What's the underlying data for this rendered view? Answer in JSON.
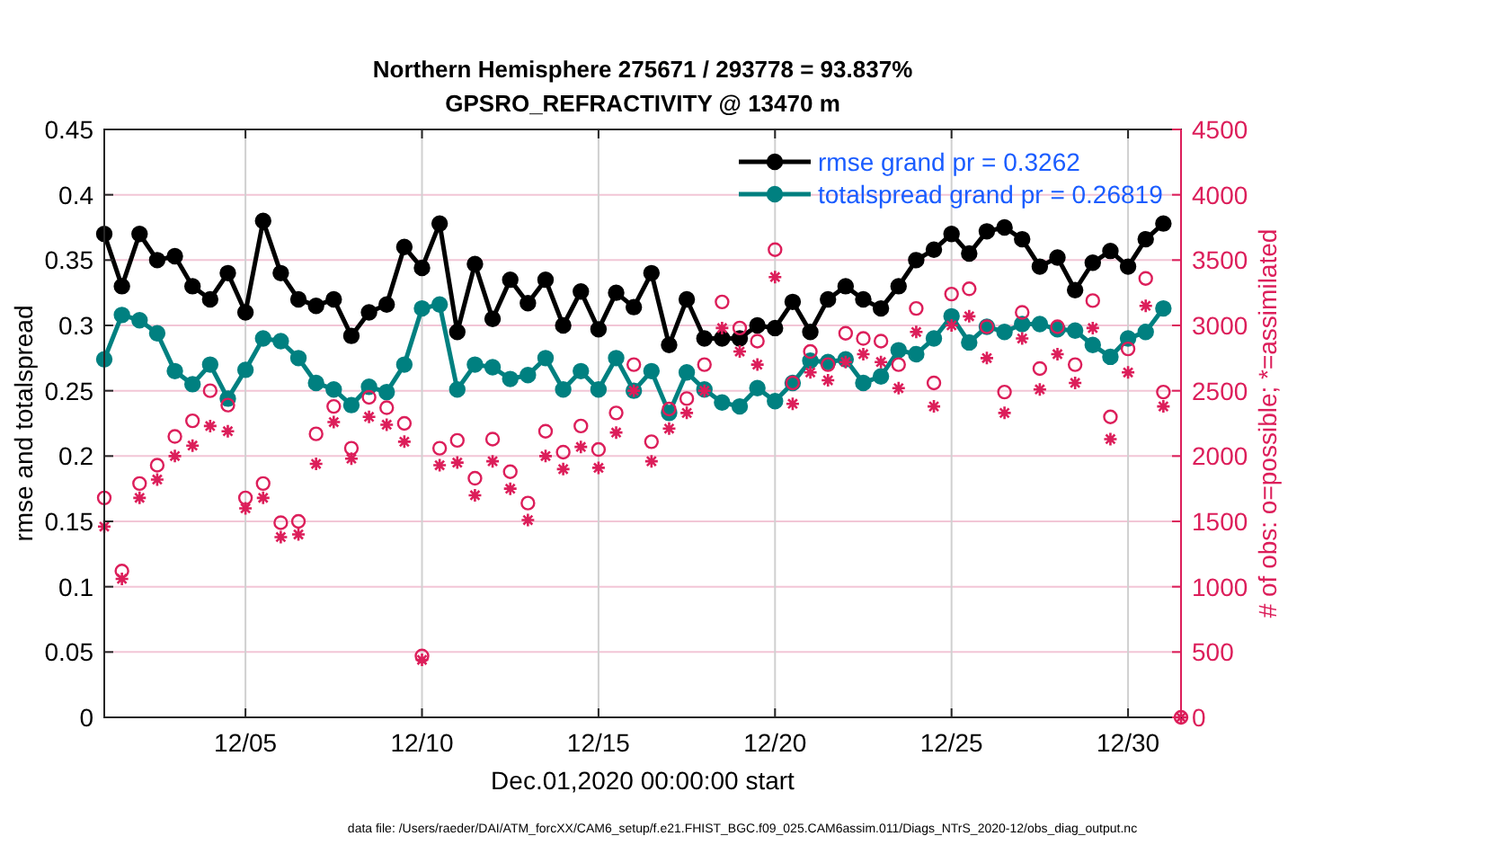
{
  "chart_data": {
    "type": "line",
    "title": "Northern Hemisphere 275671 / 293778 = 93.837%",
    "subtitle": "GPSRO_REFRACTIVITY @ 13470 m",
    "xlabel": "Dec.01,2020 00:00:00 start",
    "ylabel": "rmse and totalspread",
    "y2label": "# of obs: o=possible; *=assimilated",
    "annotations": [
      "data file: /Users/raeder/DAI/ATM_forcXX/CAM6_setup/f.e21.FHIST_BGC.f09_025.CAM6assim.011/Diags_NTrS_2020-12/obs_diag_output.nc"
    ],
    "x": [
      "2020-12-01T00:00",
      "2020-12-01T12:00",
      "2020-12-02T00:00",
      "2020-12-02T12:00",
      "2020-12-03T00:00",
      "2020-12-03T12:00",
      "2020-12-04T00:00",
      "2020-12-04T12:00",
      "2020-12-05T00:00",
      "2020-12-05T12:00",
      "2020-12-06T00:00",
      "2020-12-06T12:00",
      "2020-12-07T00:00",
      "2020-12-07T12:00",
      "2020-12-08T00:00",
      "2020-12-08T12:00",
      "2020-12-09T00:00",
      "2020-12-09T12:00",
      "2020-12-10T00:00",
      "2020-12-10T12:00",
      "2020-12-11T00:00",
      "2020-12-11T12:00",
      "2020-12-12T00:00",
      "2020-12-12T12:00",
      "2020-12-13T00:00",
      "2020-12-13T12:00",
      "2020-12-14T00:00",
      "2020-12-14T12:00",
      "2020-12-15T00:00",
      "2020-12-15T12:00",
      "2020-12-16T00:00",
      "2020-12-16T12:00",
      "2020-12-17T00:00",
      "2020-12-17T12:00",
      "2020-12-18T00:00",
      "2020-12-18T12:00",
      "2020-12-19T00:00",
      "2020-12-19T12:00",
      "2020-12-20T00:00",
      "2020-12-20T12:00",
      "2020-12-21T00:00",
      "2020-12-21T12:00",
      "2020-12-22T00:00",
      "2020-12-22T12:00",
      "2020-12-23T00:00",
      "2020-12-23T12:00",
      "2020-12-24T00:00",
      "2020-12-24T12:00",
      "2020-12-25T00:00",
      "2020-12-25T12:00",
      "2020-12-26T00:00",
      "2020-12-26T12:00",
      "2020-12-27T00:00",
      "2020-12-27T12:00",
      "2020-12-28T00:00",
      "2020-12-28T12:00",
      "2020-12-29T00:00",
      "2020-12-29T12:00",
      "2020-12-30T00:00",
      "2020-12-30T12:00",
      "2020-12-31T00:00",
      "2020-12-31T12:00"
    ],
    "series": [
      {
        "name": "rmse grand pr = 0.3262",
        "marker": "circle",
        "color": "#000000",
        "values": [
          0.37,
          0.33,
          0.37,
          0.35,
          0.353,
          0.33,
          0.32,
          0.34,
          0.31,
          0.38,
          0.34,
          0.32,
          0.315,
          0.32,
          0.292,
          0.31,
          0.316,
          0.36,
          0.344,
          0.378,
          0.295,
          0.347,
          0.305,
          0.335,
          0.317,
          0.335,
          0.3,
          0.326,
          0.297,
          0.325,
          0.314,
          0.34,
          0.285,
          0.32,
          0.29,
          0.29,
          0.29,
          0.3,
          0.298,
          0.318,
          0.295,
          0.32,
          0.33,
          0.32,
          0.313,
          0.33,
          0.35,
          0.358,
          0.37,
          0.355,
          0.372,
          0.375,
          0.366,
          0.345,
          0.352,
          0.327,
          0.348,
          0.357,
          0.345,
          0.366,
          0.378,
          null
        ]
      },
      {
        "name": "totalspread grand pr = 0.26819",
        "marker": "circle",
        "color": "#008080",
        "values": [
          0.274,
          0.308,
          0.304,
          0.294,
          0.265,
          0.255,
          0.27,
          0.244,
          0.266,
          0.29,
          0.288,
          0.275,
          0.256,
          0.251,
          0.239,
          0.253,
          0.249,
          0.27,
          0.313,
          0.316,
          0.251,
          0.27,
          0.268,
          0.259,
          0.262,
          0.275,
          0.251,
          0.265,
          0.251,
          0.275,
          0.25,
          0.265,
          0.233,
          0.264,
          0.251,
          0.241,
          0.238,
          0.252,
          0.242,
          0.256,
          0.273,
          0.272,
          0.274,
          0.256,
          0.261,
          0.281,
          0.278,
          0.29,
          0.307,
          0.287,
          0.299,
          0.295,
          0.301,
          0.301,
          0.297,
          0.296,
          0.285,
          0.276,
          0.29,
          0.295,
          0.313,
          null
        ]
      },
      {
        "type": "scatter",
        "axis": "y2",
        "marker": "circle",
        "color": "#dc1e5a",
        "values": [
          1680,
          1120,
          1790,
          1930,
          2150,
          2270,
          2500,
          2390,
          1680,
          1790,
          1490,
          1500,
          2170,
          2380,
          2060,
          2450,
          2370,
          2250,
          470,
          2060,
          2120,
          1830,
          2130,
          1880,
          1640,
          2190,
          2030,
          2230,
          2050,
          2330,
          2700,
          2110,
          2360,
          2440,
          2700,
          3180,
          2980,
          2880,
          3580,
          2560,
          2800,
          2700,
          2940,
          2900,
          2880,
          2700,
          3130,
          2560,
          3240,
          3280,
          2990,
          2490,
          3100,
          2670,
          2990,
          2700,
          3190,
          2300,
          2820,
          3360,
          2490,
          0
        ]
      },
      {
        "type": "scatter",
        "axis": "y2",
        "marker": "cross",
        "color": "#dc1e5a",
        "values": [
          1460,
          1060,
          1680,
          1820,
          2000,
          2080,
          2230,
          2190,
          1600,
          1680,
          1380,
          1400,
          1940,
          2260,
          1980,
          2300,
          2240,
          2110,
          440,
          1930,
          1950,
          1700,
          1960,
          1750,
          1510,
          2000,
          1900,
          2070,
          1910,
          2180,
          2500,
          1960,
          2210,
          2330,
          2500,
          2980,
          2800,
          2700,
          3370,
          2400,
          2640,
          2580,
          2720,
          2780,
          2720,
          2520,
          2950,
          2380,
          3000,
          3070,
          2750,
          2330,
          2900,
          2510,
          2780,
          2560,
          2980,
          2130,
          2640,
          3150,
          2380,
          0
        ]
      }
    ],
    "xlim": [
      "2020-12-01T00:00",
      "2020-12-31T12:00"
    ],
    "xticks": [
      {
        "value": "2020-12-05",
        "label": "12/05"
      },
      {
        "value": "2020-12-10",
        "label": "12/10"
      },
      {
        "value": "2020-12-15",
        "label": "12/15"
      },
      {
        "value": "2020-12-20",
        "label": "12/20"
      },
      {
        "value": "2020-12-25",
        "label": "12/25"
      },
      {
        "value": "2020-12-30",
        "label": "12/30"
      }
    ],
    "ylim": [
      0,
      0.45
    ],
    "yticks": [
      0,
      0.05,
      0.1,
      0.15,
      0.2,
      0.25,
      0.3,
      0.35,
      0.4,
      0.45
    ],
    "y2lim": [
      0,
      4500
    ],
    "y2ticks": [
      0,
      500,
      1000,
      1500,
      2000,
      2500,
      3000,
      3500,
      4000,
      4500
    ],
    "grid": true,
    "legend": "top right"
  }
}
